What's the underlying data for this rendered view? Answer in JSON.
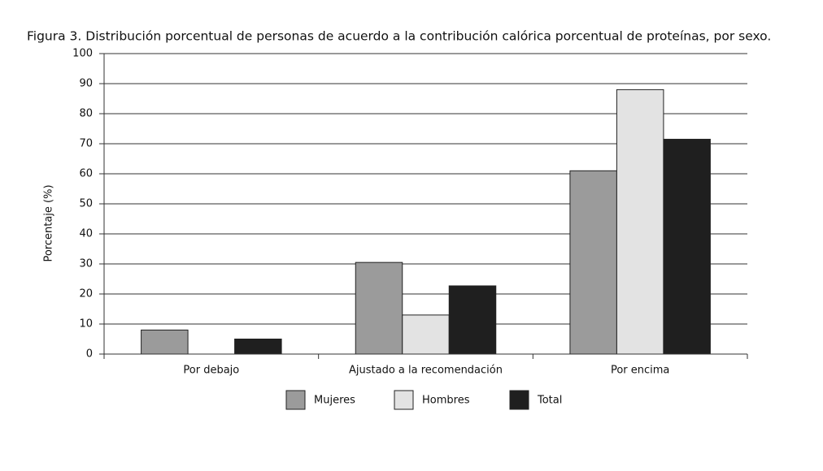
{
  "chart_data": {
    "type": "bar",
    "title": "Figura 3. Distribución porcentual de personas de acuerdo a la contribución calórica porcentual de proteínas, por sexo.",
    "y_label": "Porcentaje (%)",
    "categories": [
      "Por debajo",
      "Ajustado a la recomendación",
      "Por encima"
    ],
    "series": [
      {
        "name": "Mujeres",
        "color": "#9b9b9b",
        "values": [
          8,
          30.5,
          61
        ]
      },
      {
        "name": "Hombres",
        "color": "#e3e3e3",
        "values": [
          0,
          13,
          88
        ]
      },
      {
        "name": "Total",
        "color": "#1f1f1f",
        "values": [
          5,
          22.7,
          71.5
        ]
      }
    ],
    "ylim": [
      0,
      100
    ],
    "yticks": [
      0,
      10,
      20,
      30,
      40,
      50,
      60,
      70,
      80,
      90,
      100
    ],
    "grid": true
  }
}
